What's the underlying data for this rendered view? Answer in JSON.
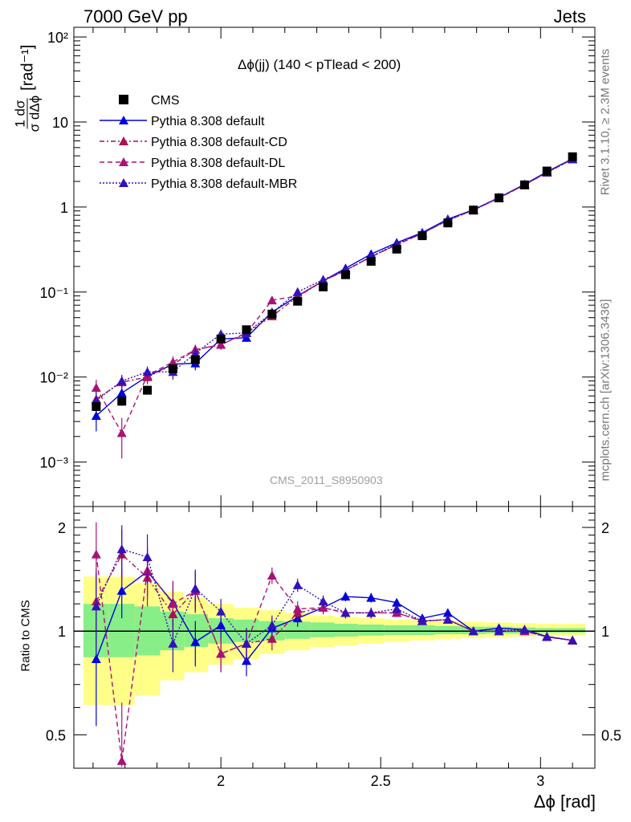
{
  "header": {
    "left": "7000 GeV pp",
    "right": "Jets"
  },
  "side_texts": {
    "rivet": "Rivet 3.1.10, ≥ 2.3M events",
    "mcplots": "mcplots.cern.ch [arXiv:1306.3436]"
  },
  "watermark": "CMS_2011_S8950903",
  "ylabel_main": {
    "numerator": "1 dσ",
    "denominator": "σ dΔϕ",
    "unit": "[rad⁻¹]"
  },
  "ylabel_ratio": "Ratio to CMS",
  "xlabel": "Δϕ [rad]",
  "plot_title": "Δϕ(jj) (140 < pTlead <  200)",
  "colors": {
    "CMS": "#000000",
    "default": "#0000dd",
    "CD": "#aa1155",
    "DL": "#aa1177",
    "MBR": "#3311bb",
    "band_inner": "#88ee88",
    "band_outer": "#ffff88"
  },
  "chart_data": [
    {
      "type": "scatter",
      "title": "Δϕ(jj) (140 < pTlead <  200)",
      "xlabel": "Δϕ [rad]",
      "ylabel": "1/σ dσ/dΔϕ [rad⁻¹]",
      "yscale": "log",
      "xlim": [
        1.54,
        3.17
      ],
      "ylim": [
        0.0003,
        130
      ],
      "x_ticks": [
        "2",
        "2.5",
        "3"
      ],
      "y_ticks": [
        "10⁻³",
        "10⁻²",
        "10⁻¹",
        "1",
        "10",
        "10²"
      ],
      "legend_position": "top-left",
      "x": [
        1.61,
        1.69,
        1.77,
        1.85,
        1.92,
        2.0,
        2.08,
        2.16,
        2.24,
        2.32,
        2.39,
        2.47,
        2.55,
        2.63,
        2.71,
        2.79,
        2.87,
        2.95,
        3.02,
        3.1
      ],
      "series": [
        {
          "name": "CMS",
          "marker": "square",
          "values": [
            0.0045,
            0.0052,
            0.007,
            0.0125,
            0.016,
            0.028,
            0.036,
            0.055,
            0.078,
            0.115,
            0.16,
            0.23,
            0.32,
            0.46,
            0.65,
            0.92,
            1.28,
            1.82,
            2.65,
            3.9
          ],
          "errors": [
            0.0006,
            0.0006,
            0.0006,
            0.0012,
            0.0015,
            0.002,
            0.003,
            0.004,
            0.005,
            0.006,
            0.008,
            0.01,
            0.014,
            0.02,
            0.03,
            0.04,
            0.05,
            0.07,
            0.1,
            0.15
          ]
        },
        {
          "name": "Pythia 8.308 default",
          "line": "solid",
          "values": [
            0.0035,
            0.0065,
            0.0102,
            0.0142,
            0.0145,
            0.028,
            0.029,
            0.058,
            0.09,
            0.135,
            0.19,
            0.28,
            0.38,
            0.5,
            0.72,
            0.93,
            1.29,
            1.85,
            2.6,
            3.7
          ],
          "errors": [
            0.0012,
            0.0012,
            0.0016,
            0.0025,
            0.0025,
            0.003,
            0.003,
            0.004,
            0.005,
            0.006,
            0.008,
            0.01,
            0.014,
            0.02,
            0.03,
            0.04,
            0.05,
            0.07,
            0.1,
            0.15
          ]
        },
        {
          "name": "Pythia 8.308 default-CD",
          "line": "dashdot",
          "values": [
            0.0055,
            0.0087,
            0.01,
            0.014,
            0.021,
            0.024,
            0.033,
            0.052,
            0.088,
            0.135,
            0.18,
            0.26,
            0.36,
            0.49,
            0.7,
            0.92,
            1.28,
            1.82,
            2.55,
            3.65
          ],
          "errors": [
            0.0015,
            0.0016,
            0.0018,
            0.0025,
            0.003,
            0.003,
            0.004,
            0.004,
            0.005,
            0.006,
            0.008,
            0.01,
            0.014,
            0.02,
            0.03,
            0.04,
            0.05,
            0.07,
            0.1,
            0.15
          ]
        },
        {
          "name": "Pythia 8.308 default-DL",
          "line": "dashed",
          "values": [
            0.0075,
            0.0022,
            0.0105,
            0.015,
            0.021,
            0.024,
            0.033,
            0.08,
            0.09,
            0.135,
            0.18,
            0.26,
            0.36,
            0.49,
            0.7,
            0.92,
            1.28,
            1.82,
            2.55,
            3.65
          ],
          "errors": [
            0.0018,
            0.0011,
            0.0018,
            0.0025,
            0.003,
            0.003,
            0.004,
            0.005,
            0.005,
            0.006,
            0.008,
            0.01,
            0.014,
            0.02,
            0.03,
            0.04,
            0.05,
            0.07,
            0.1,
            0.15
          ]
        },
        {
          "name": "Pythia 8.308 default-MBR",
          "line": "dotted",
          "values": [
            0.0053,
            0.009,
            0.0115,
            0.0115,
            0.019,
            0.032,
            0.033,
            0.057,
            0.1,
            0.14,
            0.18,
            0.26,
            0.37,
            0.49,
            0.7,
            0.92,
            1.28,
            1.84,
            2.55,
            3.65
          ],
          "errors": [
            0.0015,
            0.0016,
            0.0018,
            0.0022,
            0.003,
            0.003,
            0.004,
            0.004,
            0.005,
            0.006,
            0.008,
            0.01,
            0.014,
            0.02,
            0.03,
            0.04,
            0.05,
            0.07,
            0.1,
            0.15
          ]
        }
      ]
    },
    {
      "type": "scatter",
      "title": "",
      "xlabel": "Δϕ [rad]",
      "ylabel": "Ratio to CMS",
      "yscale": "log",
      "xlim": [
        1.54,
        3.17
      ],
      "ylim": [
        0.4,
        2.3
      ],
      "x_ticks": [
        "2",
        "2.5",
        "3"
      ],
      "y_ticks": [
        "0.5",
        "1",
        "2"
      ],
      "x": [
        1.61,
        1.69,
        1.77,
        1.85,
        1.92,
        2.0,
        2.08,
        2.16,
        2.24,
        2.32,
        2.39,
        2.47,
        2.55,
        2.63,
        2.71,
        2.79,
        2.87,
        2.95,
        3.02,
        3.1
      ],
      "bands": {
        "inner_lo": [
          0.84,
          0.84,
          0.85,
          0.88,
          0.9,
          0.92,
          0.93,
          0.94,
          0.95,
          0.96,
          0.965,
          0.97,
          0.975,
          0.975,
          0.98,
          0.98,
          0.985,
          0.985,
          0.99,
          0.99
        ],
        "inner_hi": [
          1.2,
          1.2,
          1.18,
          1.14,
          1.12,
          1.09,
          1.08,
          1.07,
          1.065,
          1.06,
          1.05,
          1.045,
          1.04,
          1.04,
          1.035,
          1.03,
          1.03,
          1.025,
          1.02,
          1.02
        ],
        "outer_lo": [
          0.61,
          0.61,
          0.65,
          0.72,
          0.76,
          0.8,
          0.83,
          0.86,
          0.88,
          0.9,
          0.91,
          0.92,
          0.93,
          0.94,
          0.95,
          0.955,
          0.96,
          0.965,
          0.97,
          0.97
        ],
        "outer_hi": [
          1.44,
          1.44,
          1.38,
          1.3,
          1.25,
          1.2,
          1.17,
          1.15,
          1.13,
          1.11,
          1.1,
          1.09,
          1.08,
          1.075,
          1.07,
          1.065,
          1.06,
          1.055,
          1.05,
          1.05
        ]
      },
      "series": [
        {
          "name": "Pythia 8.308 default",
          "line": "solid",
          "values": [
            0.83,
            1.31,
            1.49,
            1.21,
            0.93,
            1.04,
            0.82,
            1.02,
            1.09,
            1.17,
            1.26,
            1.25,
            1.21,
            1.09,
            1.13,
            1.0,
            1.02,
            1.01,
            0.965,
            0.94
          ],
          "errors": [
            0.3,
            0.22,
            0.23,
            0.18,
            0.14,
            0.1,
            0.08,
            0.07,
            0.06,
            0.05,
            0.04,
            0.04,
            0.03,
            0.025,
            0.02,
            0.015,
            0.015,
            0.012,
            0.01,
            0.01
          ]
        },
        {
          "name": "Pythia 8.308 default-CD",
          "line": "dashdot",
          "values": [
            1.22,
            1.67,
            1.43,
            1.12,
            1.31,
            0.86,
            0.92,
            0.95,
            1.13,
            1.17,
            1.13,
            1.13,
            1.13,
            1.07,
            1.08,
            1.0,
            1.0,
            1.0,
            0.962,
            0.94
          ],
          "errors": [
            0.3,
            0.3,
            0.25,
            0.2,
            0.18,
            0.1,
            0.1,
            0.07,
            0.06,
            0.05,
            0.04,
            0.04,
            0.03,
            0.025,
            0.02,
            0.015,
            0.015,
            0.012,
            0.01,
            0.01
          ]
        },
        {
          "name": "Pythia 8.308 default-DL",
          "line": "dashed",
          "values": [
            1.67,
            0.42,
            1.5,
            1.2,
            1.31,
            0.86,
            0.92,
            1.45,
            1.16,
            1.17,
            1.13,
            1.13,
            1.13,
            1.07,
            1.08,
            1.0,
            1.0,
            1.0,
            0.962,
            0.94
          ],
          "errors": [
            0.4,
            0.2,
            0.26,
            0.2,
            0.18,
            0.1,
            0.1,
            0.08,
            0.06,
            0.05,
            0.04,
            0.04,
            0.03,
            0.025,
            0.02,
            0.015,
            0.015,
            0.012,
            0.01,
            0.01
          ]
        },
        {
          "name": "Pythia 8.308 default-MBR",
          "line": "dotted",
          "values": [
            1.18,
            1.73,
            1.64,
            0.92,
            1.33,
            1.14,
            0.92,
            1.04,
            1.36,
            1.22,
            1.13,
            1.13,
            1.16,
            1.07,
            1.08,
            1.0,
            1.0,
            1.01,
            0.962,
            0.94
          ],
          "errors": [
            0.3,
            0.3,
            0.27,
            0.16,
            0.18,
            0.1,
            0.1,
            0.07,
            0.06,
            0.05,
            0.04,
            0.04,
            0.03,
            0.025,
            0.02,
            0.015,
            0.015,
            0.012,
            0.01,
            0.01
          ]
        }
      ]
    }
  ]
}
